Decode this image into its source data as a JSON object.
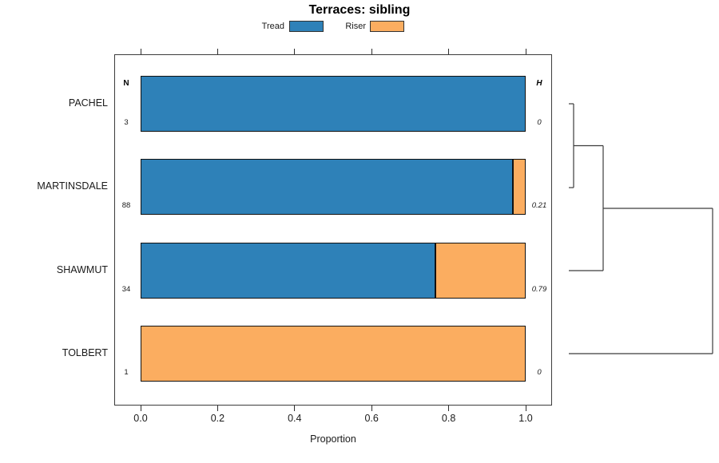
{
  "title": "Terraces: sibling",
  "legend": {
    "items": [
      {
        "label": "Tread",
        "color": "#2E81B8"
      },
      {
        "label": "Riser",
        "color": "#FBAD60"
      }
    ]
  },
  "table_headers": {
    "n": "N",
    "h": "H"
  },
  "axis": {
    "xlabel": "Proportion",
    "ticks": [
      {
        "value": 0.0,
        "label": "0.0"
      },
      {
        "value": 0.2,
        "label": "0.2"
      },
      {
        "value": 0.4,
        "label": "0.4"
      },
      {
        "value": 0.6,
        "label": "0.6"
      },
      {
        "value": 0.8,
        "label": "0.8"
      },
      {
        "value": 1.0,
        "label": "1.0"
      }
    ]
  },
  "chart_data": {
    "type": "bar",
    "subtype": "horizontal-stacked-proportion",
    "title": "Terraces: sibling",
    "xlabel": "Proportion",
    "xlim": [
      0,
      1
    ],
    "x_ticks": [
      0.0,
      0.2,
      0.4,
      0.6,
      0.8,
      1.0
    ],
    "grid": false,
    "legend_position": "top",
    "series_names": [
      "Tread",
      "Riser"
    ],
    "categories": [
      "PACHEL",
      "MARTINSDALE",
      "SHAWMUT",
      "TOLBERT"
    ],
    "rows": [
      {
        "label": "PACHEL",
        "n": "3",
        "entropy_h": "0",
        "tread": 1.0,
        "riser": 0.0
      },
      {
        "label": "MARTINSDALE",
        "n": "88",
        "entropy_h": "0.21",
        "tread": 0.966,
        "riser": 0.034
      },
      {
        "label": "SHAWMUT",
        "n": "34",
        "entropy_h": "0.79",
        "tread": 0.765,
        "riser": 0.235
      },
      {
        "label": "TOLBERT",
        "n": "1",
        "entropy_h": "0",
        "tread": 0.0,
        "riser": 1.0
      }
    ],
    "colors": {
      "tread": "#2E81B8",
      "riser": "#FBAD60"
    },
    "dendrogram": {
      "orientation": "right-of-bars",
      "leaves_top_to_bottom": [
        "PACHEL",
        "MARTINSDALE",
        "SHAWMUT",
        "TOLBERT"
      ],
      "merges": [
        {
          "members": [
            "PACHEL",
            "MARTINSDALE"
          ],
          "relative_height": 0.03
        },
        {
          "members": [
            "PACHEL+MARTINSDALE",
            "SHAWMUT"
          ],
          "relative_height": 0.24
        },
        {
          "members": [
            "PACHEL+MARTINSDALE+SHAWMUT",
            "TOLBERT"
          ],
          "relative_height": 1.0
        }
      ],
      "segments": [
        [
          12,
          70,
          18,
          70
        ],
        [
          18,
          70,
          18,
          175
        ],
        [
          12,
          175,
          18,
          175
        ],
        [
          18,
          122.5,
          55,
          122.5
        ],
        [
          55,
          122.5,
          55,
          279
        ],
        [
          12,
          279,
          55,
          279
        ],
        [
          55,
          201,
          192,
          201
        ],
        [
          192,
          201,
          192,
          383
        ],
        [
          12,
          383,
          192,
          383
        ]
      ]
    }
  }
}
